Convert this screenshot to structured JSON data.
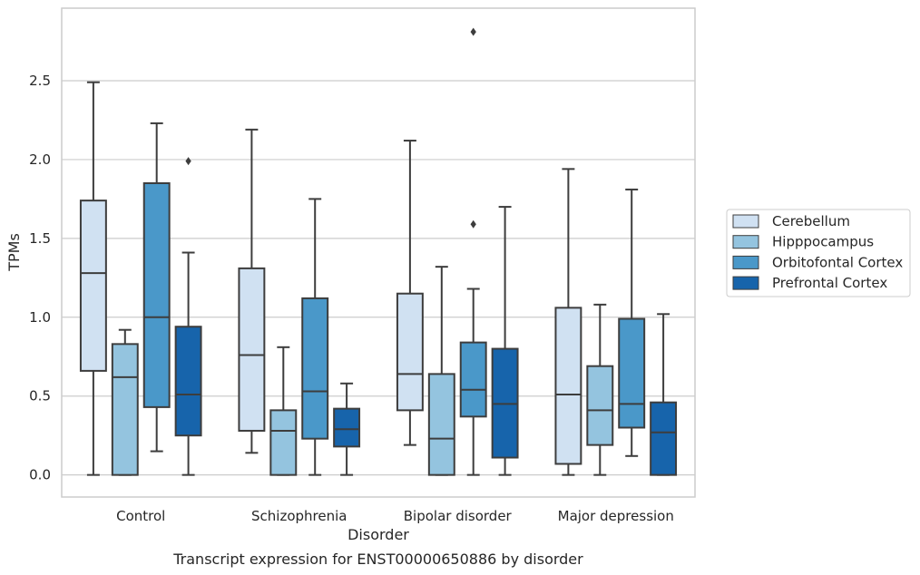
{
  "chart_data": {
    "type": "box",
    "title": "",
    "caption": "Transcript expression for ENST00000650886 by disorder",
    "xlabel": "Disorder",
    "ylabel": "TPMs",
    "ylim": [
      -0.14,
      2.96
    ],
    "yticks": [
      0.0,
      0.5,
      1.0,
      1.5,
      2.0,
      2.5
    ],
    "yticklabels": [
      "0.0",
      "0.5",
      "1.0",
      "1.5",
      "2.0",
      "2.5"
    ],
    "grid": "horizontal",
    "legend_placement": "right",
    "categories": [
      "Control",
      "Schizophrenia",
      "Bipolar disorder",
      "Major depression"
    ],
    "series": [
      {
        "name": "Cerebellum",
        "color": "#d0e1f2",
        "boxes": [
          {
            "whisker_low": 0.0,
            "q1": 0.66,
            "median": 1.28,
            "q3": 1.74,
            "whisker_high": 2.49,
            "outliers": []
          },
          {
            "whisker_low": 0.14,
            "q1": 0.28,
            "median": 0.76,
            "q3": 1.31,
            "whisker_high": 2.19,
            "outliers": []
          },
          {
            "whisker_low": 0.19,
            "q1": 0.41,
            "median": 0.64,
            "q3": 1.15,
            "whisker_high": 2.12,
            "outliers": []
          },
          {
            "whisker_low": 0.0,
            "q1": 0.07,
            "median": 0.51,
            "q3": 1.06,
            "whisker_high": 1.94,
            "outliers": []
          }
        ]
      },
      {
        "name": "Hipppocampus",
        "color": "#94c4df",
        "boxes": [
          {
            "whisker_low": 0.0,
            "q1": 0.0,
            "median": 0.62,
            "q3": 0.83,
            "whisker_high": 0.92,
            "outliers": []
          },
          {
            "whisker_low": 0.0,
            "q1": 0.0,
            "median": 0.28,
            "q3": 0.41,
            "whisker_high": 0.81,
            "outliers": []
          },
          {
            "whisker_low": 0.0,
            "q1": 0.0,
            "median": 0.23,
            "q3": 0.64,
            "whisker_high": 1.32,
            "outliers": []
          },
          {
            "whisker_low": 0.0,
            "q1": 0.19,
            "median": 0.41,
            "q3": 0.69,
            "whisker_high": 1.08,
            "outliers": []
          }
        ]
      },
      {
        "name": "Orbitofontal Cortex",
        "color": "#4a98c9",
        "boxes": [
          {
            "whisker_low": 0.15,
            "q1": 0.43,
            "median": 1.0,
            "q3": 1.85,
            "whisker_high": 2.23,
            "outliers": []
          },
          {
            "whisker_low": 0.0,
            "q1": 0.23,
            "median": 0.53,
            "q3": 1.12,
            "whisker_high": 1.75,
            "outliers": []
          },
          {
            "whisker_low": 0.0,
            "q1": 0.37,
            "median": 0.54,
            "q3": 0.84,
            "whisker_high": 1.18,
            "outliers": [
              1.59,
              2.81
            ]
          },
          {
            "whisker_low": 0.12,
            "q1": 0.3,
            "median": 0.45,
            "q3": 0.99,
            "whisker_high": 1.81,
            "outliers": []
          }
        ]
      },
      {
        "name": "Prefrontal Cortex",
        "color": "#1764ab",
        "boxes": [
          {
            "whisker_low": 0.0,
            "q1": 0.25,
            "median": 0.51,
            "q3": 0.94,
            "whisker_high": 1.41,
            "outliers": [
              1.99
            ]
          },
          {
            "whisker_low": 0.0,
            "q1": 0.18,
            "median": 0.29,
            "q3": 0.42,
            "whisker_high": 0.58,
            "outliers": []
          },
          {
            "whisker_low": 0.0,
            "q1": 0.11,
            "median": 0.45,
            "q3": 0.8,
            "whisker_high": 1.7,
            "outliers": []
          },
          {
            "whisker_low": 0.0,
            "q1": 0.0,
            "median": 0.27,
            "q3": 0.46,
            "whisker_high": 1.02,
            "outliers": []
          }
        ]
      }
    ]
  }
}
